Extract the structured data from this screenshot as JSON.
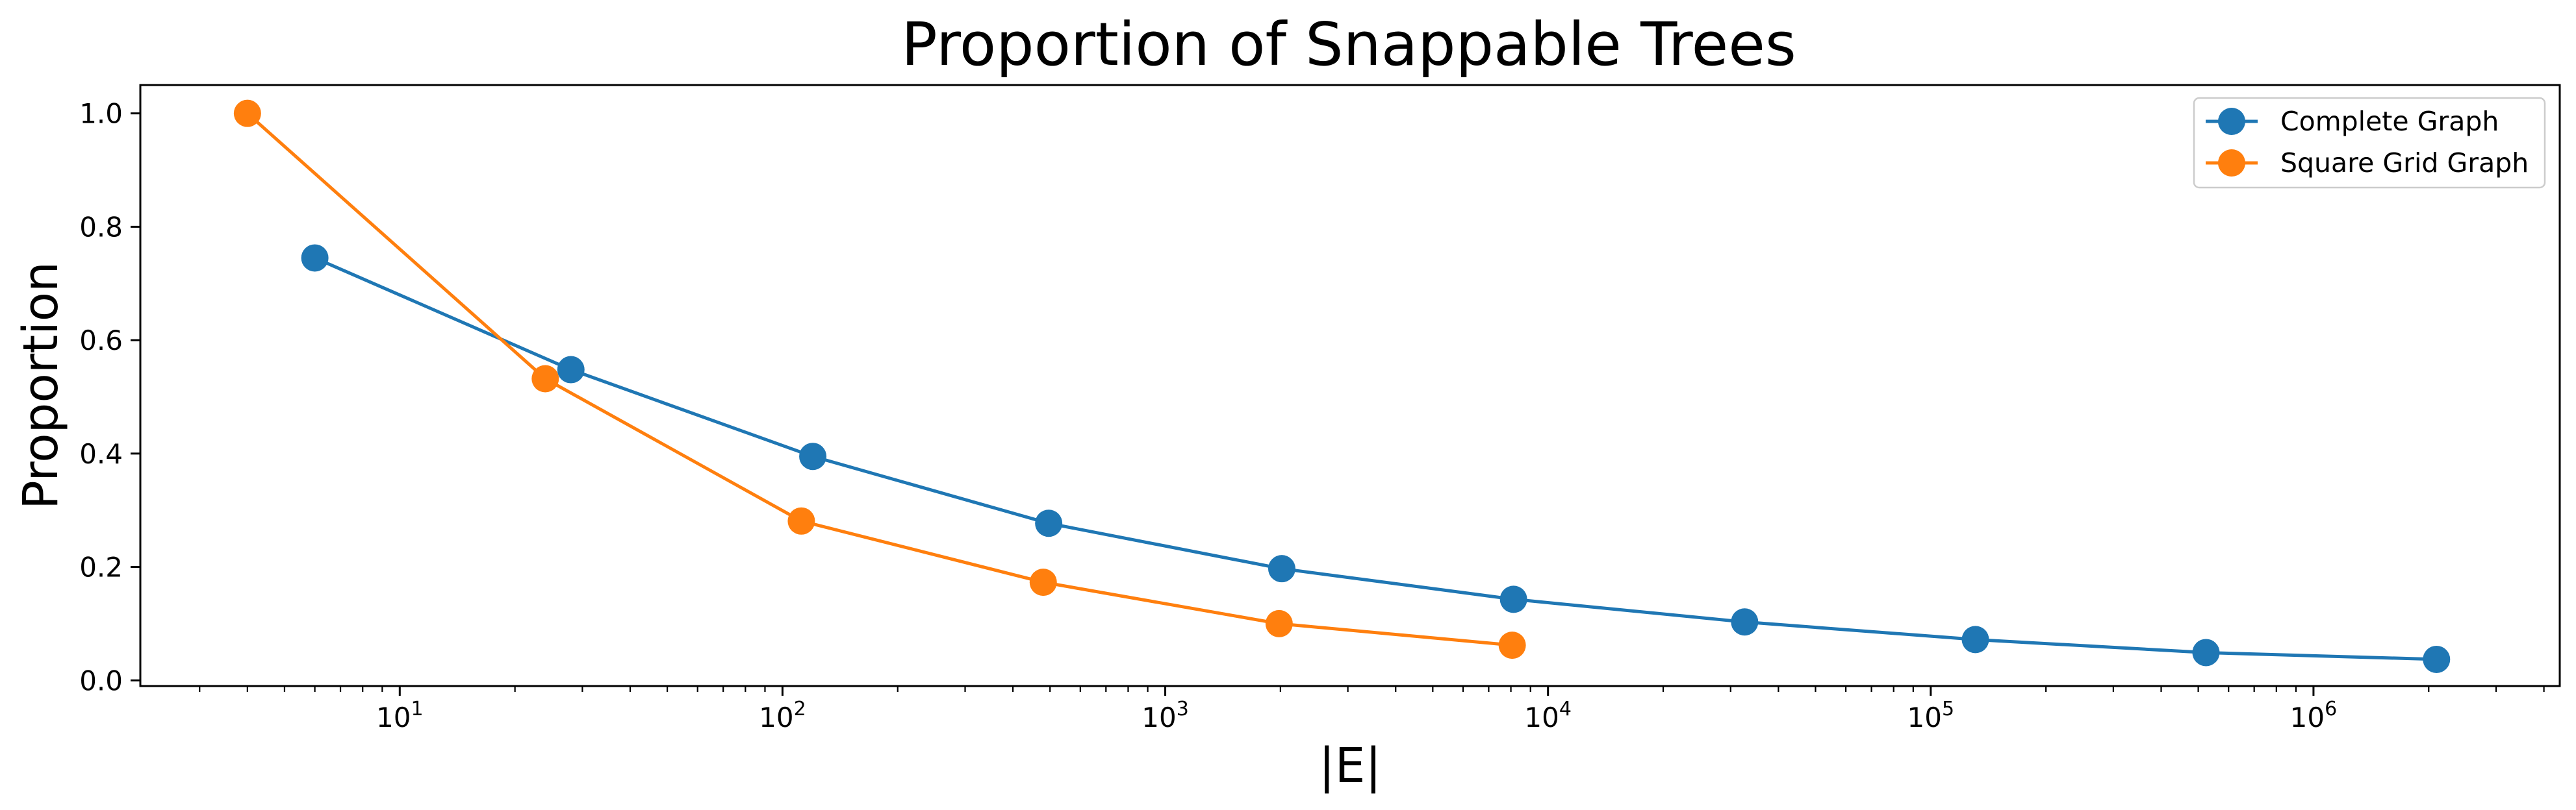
{
  "chart_data": {
    "type": "line",
    "title": "Proportion of Snappable Trees",
    "xlabel": "|E|",
    "ylabel": "Proportion",
    "x_scale": "log",
    "xlim": [
      2.1,
      4400000
    ],
    "ylim": [
      -0.01,
      1.05
    ],
    "grid": false,
    "legend_position": "top-right",
    "x_ticks": [
      {
        "value": 10,
        "base": "10",
        "exp": "1"
      },
      {
        "value": 100,
        "base": "10",
        "exp": "2"
      },
      {
        "value": 1000,
        "base": "10",
        "exp": "3"
      },
      {
        "value": 10000,
        "base": "10",
        "exp": "4"
      },
      {
        "value": 100000,
        "base": "10",
        "exp": "5"
      },
      {
        "value": 1000000,
        "base": "10",
        "exp": "6"
      }
    ],
    "y_ticks": [
      {
        "value": 0.0,
        "label": "0.0"
      },
      {
        "value": 0.2,
        "label": "0.2"
      },
      {
        "value": 0.4,
        "label": "0.4"
      },
      {
        "value": 0.6,
        "label": "0.6"
      },
      {
        "value": 0.8,
        "label": "0.8"
      },
      {
        "value": 1.0,
        "label": "1.0"
      }
    ],
    "series": [
      {
        "name": "Complete Graph",
        "color": "#1f77b4",
        "x": [
          6,
          28,
          120,
          496,
          2016,
          8128,
          32640,
          130816,
          523776,
          2096128
        ],
        "y": [
          0.745,
          0.548,
          0.395,
          0.277,
          0.197,
          0.143,
          0.103,
          0.072,
          0.049,
          0.037
        ]
      },
      {
        "name": "Square Grid Graph",
        "color": "#ff7f0e",
        "x": [
          4,
          24,
          112,
          480,
          1984,
          8064
        ],
        "y": [
          1.0,
          0.532,
          0.281,
          0.173,
          0.1,
          0.062
        ]
      }
    ]
  }
}
